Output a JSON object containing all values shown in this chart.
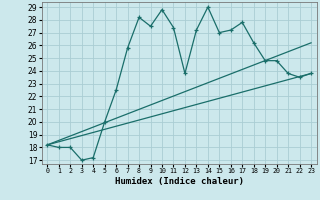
{
  "title": "",
  "xlabel": "Humidex (Indice chaleur)",
  "ylabel": "",
  "xlim": [
    -0.5,
    23.5
  ],
  "ylim": [
    16.7,
    29.4
  ],
  "yticks": [
    17,
    18,
    19,
    20,
    21,
    22,
    23,
    24,
    25,
    26,
    27,
    28,
    29
  ],
  "xticks": [
    0,
    1,
    2,
    3,
    4,
    5,
    6,
    7,
    8,
    9,
    10,
    11,
    12,
    13,
    14,
    15,
    16,
    17,
    18,
    19,
    20,
    21,
    22,
    23
  ],
  "bg_color": "#cce8ec",
  "grid_color": "#aacdd4",
  "line_color": "#1a6e6a",
  "line1_x": [
    0,
    1,
    2,
    3,
    4,
    5,
    6,
    7,
    8,
    9,
    10,
    11,
    12,
    13,
    14,
    15,
    16,
    17,
    18,
    19,
    20,
    21,
    22,
    23
  ],
  "line1_y": [
    18.2,
    18.0,
    18.0,
    17.0,
    17.2,
    20.0,
    22.5,
    25.8,
    28.2,
    27.5,
    28.8,
    27.4,
    23.8,
    27.2,
    29.0,
    27.0,
    27.2,
    27.8,
    26.2,
    24.8,
    24.8,
    23.8,
    23.5,
    23.8
  ],
  "line3_x": [
    0,
    23
  ],
  "line3_y": [
    18.2,
    26.2
  ],
  "line4_x": [
    0,
    23
  ],
  "line4_y": [
    18.2,
    23.8
  ]
}
